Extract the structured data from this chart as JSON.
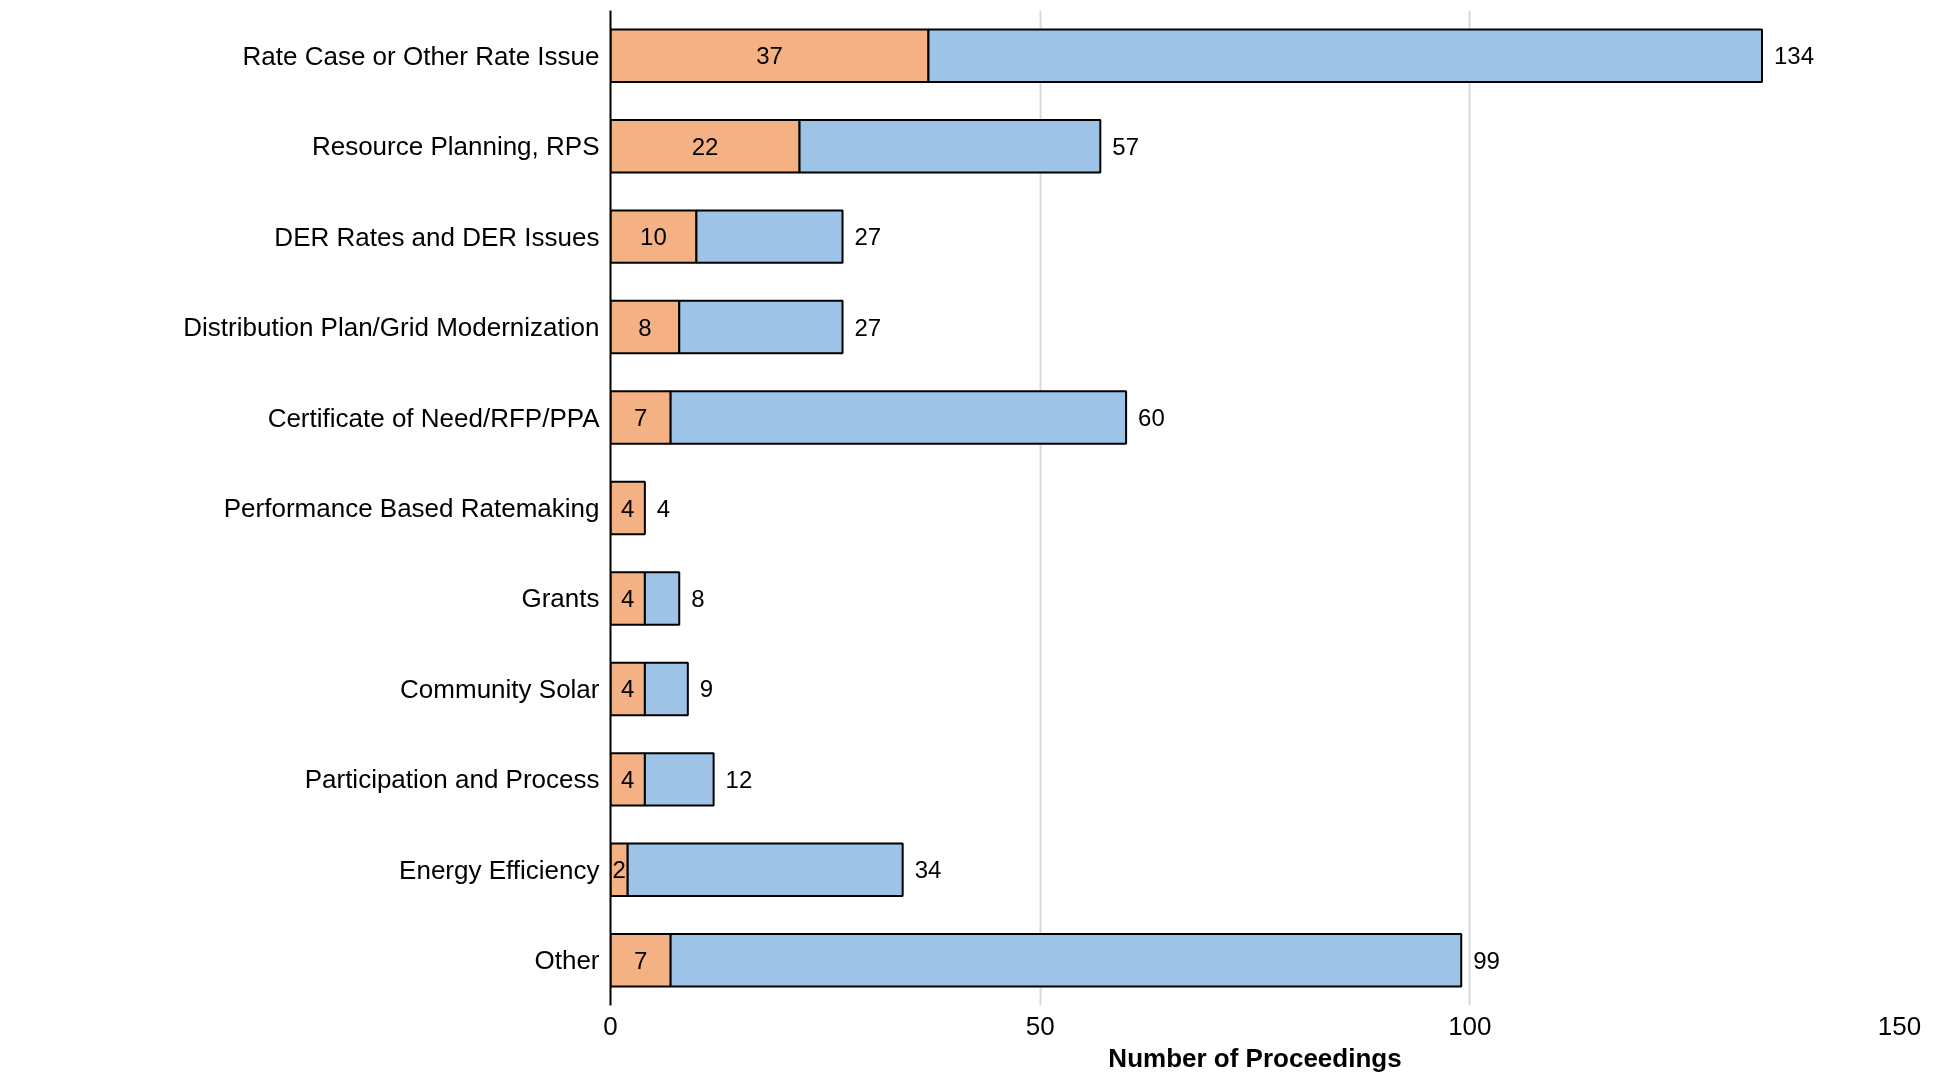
{
  "chart_data": {
    "type": "bar",
    "orientation": "horizontal",
    "stacked": true,
    "categories": [
      "Rate Case or Other Rate Issue",
      "Resource Planning, RPS",
      "DER Rates and DER Issues",
      "Distribution Plan/Grid Modernization",
      "Certificate of Need/RFP/PPA",
      "Performance Based Ratemaking",
      "Grants",
      "Community Solar",
      "Participation and Process",
      "Energy Efficiency",
      "Other"
    ],
    "series": [
      {
        "color": "#f4b183",
        "values": [
          37,
          22,
          10,
          8,
          7,
          4,
          4,
          4,
          4,
          2,
          7
        ],
        "value_labels": [
          "37",
          "22",
          "10",
          "8",
          "7",
          "4",
          "4",
          "4",
          "4",
          "2",
          "7"
        ]
      },
      {
        "color": "#9dc3e6",
        "values": [
          97,
          35,
          17,
          19,
          53,
          0,
          4,
          5,
          8,
          32,
          92
        ]
      }
    ],
    "totals": [
      "134",
      "57",
      "27",
      "27",
      "60",
      "4",
      "8",
      "9",
      "12",
      "34",
      "99"
    ],
    "xlim": [
      0,
      150
    ],
    "xticks": [
      0,
      50,
      100,
      150
    ],
    "xlabel": "Number of Proceedings",
    "grid": "x"
  }
}
